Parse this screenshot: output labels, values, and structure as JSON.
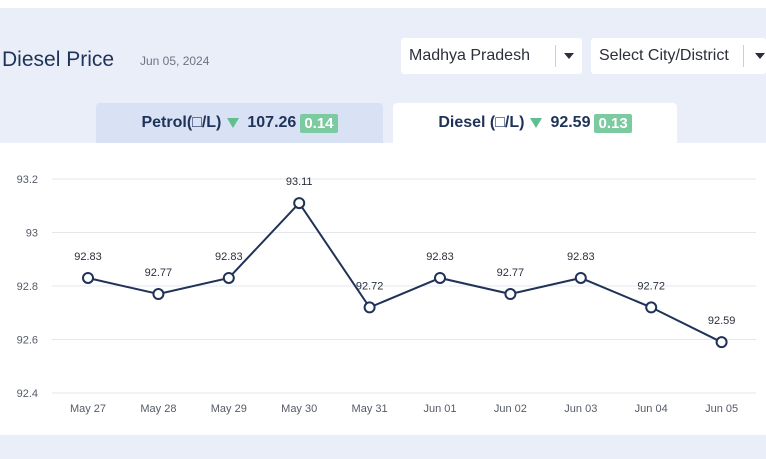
{
  "header": {
    "title": "Diesel Price",
    "date": "Jun 05, 2024"
  },
  "filters": {
    "state": "Madhya Pradesh",
    "city": "Select City/District"
  },
  "tabs": [
    {
      "fuel": "Petrol(□/L)",
      "price": "107.26",
      "change": "0.14",
      "direction": "down",
      "active": false
    },
    {
      "fuel": "Diesel (□/L)",
      "price": "92.59",
      "change": "0.13",
      "direction": "down",
      "active": true
    }
  ],
  "colors": {
    "line": "#1f3358",
    "trend_down": "#5fbf8f",
    "badge": "#7ccaa0",
    "active_tab": "#ffffff",
    "inactive_tab": "#d9e2f5"
  },
  "chart_data": {
    "type": "line",
    "categories": [
      "May 27",
      "May 28",
      "May 29",
      "May 30",
      "May 31",
      "Jun 01",
      "Jun 02",
      "Jun 03",
      "Jun 04",
      "Jun 05"
    ],
    "series": [
      {
        "values": [
          92.83,
          92.77,
          92.83,
          93.11,
          92.72,
          92.83,
          92.77,
          92.83,
          92.72,
          92.59
        ]
      }
    ],
    "data_labels": [
      "92.83",
      "92.77",
      "92.83",
      "93.11",
      "92.72",
      "92.83",
      "92.77",
      "92.83",
      "92.72",
      "92.59"
    ],
    "y_ticks": [
      "93.2",
      "93",
      "92.8",
      "92.6",
      "92.4"
    ],
    "y_tick_values": [
      93.2,
      93.0,
      92.8,
      92.6,
      92.4
    ],
    "ylim": [
      92.4,
      93.2
    ],
    "grid": true,
    "title": "",
    "xlabel": "",
    "ylabel": ""
  }
}
